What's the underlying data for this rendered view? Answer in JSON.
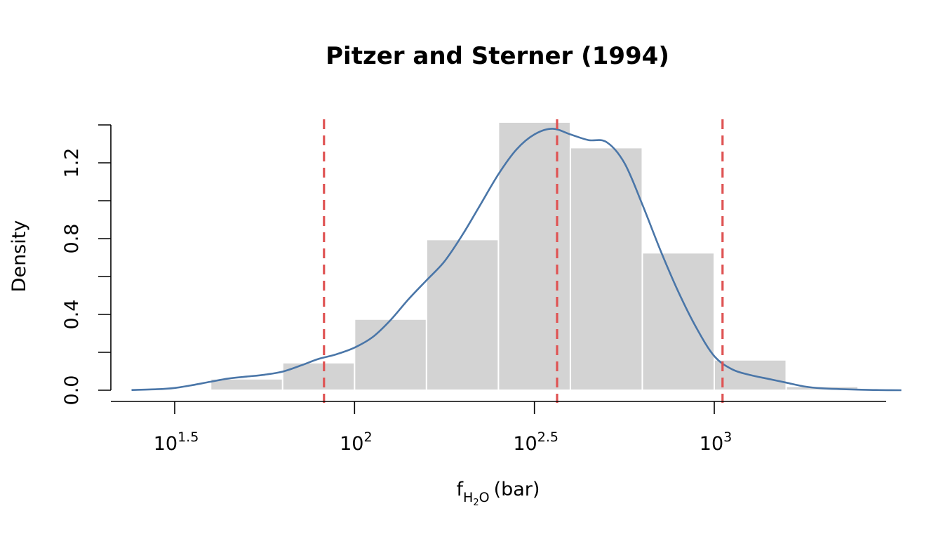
{
  "chart_data": {
    "type": "histogram",
    "title": "Pitzer and Sterner (1994)",
    "xlabel": {
      "base": "f",
      "subscript_a": "H",
      "subscript_a_sub": "2",
      "subscript_b": "O",
      "unit": "(bar)"
    },
    "ylabel": "Density",
    "x_scale": "log10",
    "xlim_log10": [
      1.37,
      3.52
    ],
    "ylim": [
      0,
      1.4
    ],
    "x_ticks": [
      {
        "base": "10",
        "exponent": "1.5",
        "log10": 1.5
      },
      {
        "base": "10",
        "exponent": "2",
        "log10": 2.0
      },
      {
        "base": "10",
        "exponent": "2.5",
        "log10": 2.5
      },
      {
        "base": "10",
        "exponent": "3",
        "log10": 3.0
      }
    ],
    "y_ticks": [
      {
        "value": 0.0,
        "label": "0.0"
      },
      {
        "value": 0.2,
        "label": ""
      },
      {
        "value": 0.4,
        "label": "0.4"
      },
      {
        "value": 0.6,
        "label": ""
      },
      {
        "value": 0.8,
        "label": "0.8"
      },
      {
        "value": 1.0,
        "label": ""
      },
      {
        "value": 1.2,
        "label": "1.2"
      },
      {
        "value": 1.4,
        "label": ""
      }
    ],
    "bins": [
      {
        "from_log10": 1.6,
        "to_log10": 1.8,
        "density": 0.06
      },
      {
        "from_log10": 1.8,
        "to_log10": 2.0,
        "density": 0.145
      },
      {
        "from_log10": 2.0,
        "to_log10": 2.2,
        "density": 0.375
      },
      {
        "from_log10": 2.2,
        "to_log10": 2.4,
        "density": 0.795
      },
      {
        "from_log10": 2.4,
        "to_log10": 2.6,
        "density": 1.415
      },
      {
        "from_log10": 2.6,
        "to_log10": 2.8,
        "density": 1.28
      },
      {
        "from_log10": 2.8,
        "to_log10": 3.0,
        "density": 0.725
      },
      {
        "from_log10": 3.0,
        "to_log10": 3.2,
        "density": 0.16
      },
      {
        "from_log10": 3.2,
        "to_log10": 3.4,
        "density": 0.02
      }
    ],
    "density_curve": {
      "x_log10": [
        1.38,
        1.45,
        1.5,
        1.55,
        1.6,
        1.65,
        1.7,
        1.75,
        1.8,
        1.85,
        1.9,
        1.95,
        2.0,
        2.05,
        2.1,
        2.15,
        2.2,
        2.25,
        2.3,
        2.35,
        2.4,
        2.45,
        2.5,
        2.55,
        2.6,
        2.65,
        2.7,
        2.75,
        2.8,
        2.85,
        2.9,
        2.95,
        3.0,
        3.05,
        3.1,
        3.15,
        3.2,
        3.25,
        3.3,
        3.35,
        3.4,
        3.45,
        3.52
      ],
      "y": [
        0.001,
        0.005,
        0.012,
        0.027,
        0.045,
        0.062,
        0.072,
        0.082,
        0.098,
        0.13,
        0.165,
        0.19,
        0.225,
        0.28,
        0.37,
        0.48,
        0.58,
        0.68,
        0.82,
        0.98,
        1.14,
        1.27,
        1.35,
        1.38,
        1.35,
        1.32,
        1.31,
        1.2,
        0.98,
        0.74,
        0.52,
        0.33,
        0.18,
        0.11,
        0.08,
        0.06,
        0.04,
        0.02,
        0.01,
        0.006,
        0.003,
        0.001,
        0.0
      ]
    },
    "vlines_log10": [
      1.915,
      2.563,
      3.023
    ],
    "colors": {
      "bars": "#d3d3d3",
      "bar_edges": "#ffffff",
      "density": "#4a76a8",
      "vlines": "#df5353",
      "axis": "#000000"
    }
  }
}
